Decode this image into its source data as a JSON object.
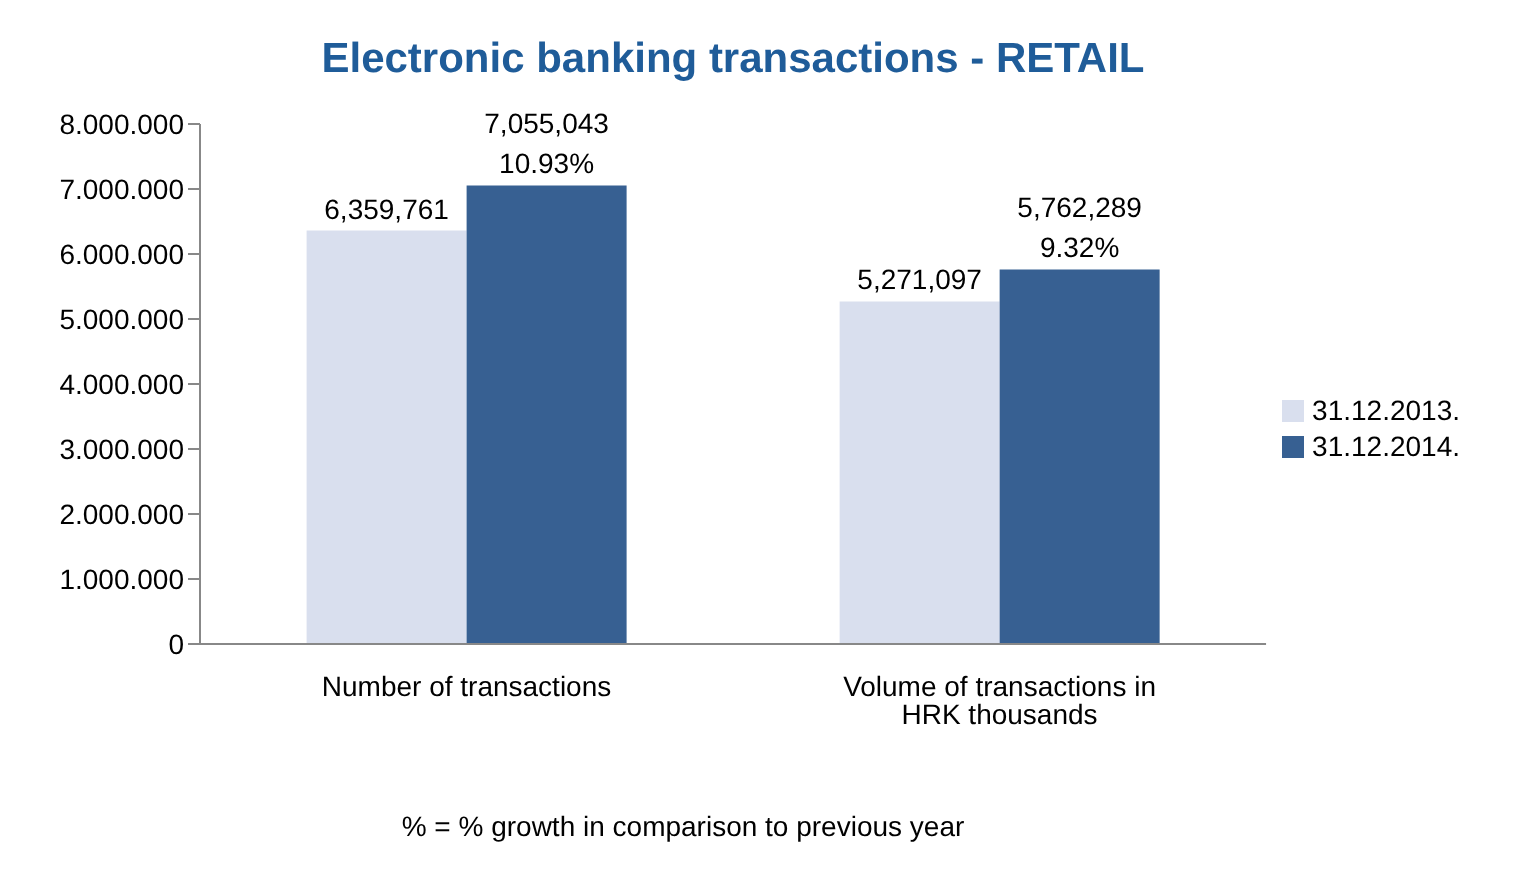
{
  "chart_data": {
    "type": "bar",
    "title": "Electronic banking transactions - RETAIL",
    "categories": [
      "Number of transactions",
      "Volume of transactions in HRK thousands"
    ],
    "series": [
      {
        "name": "31.12.2013.",
        "color": "#d9dfee",
        "values": [
          6359761,
          5271097
        ],
        "value_labels": [
          "6,359,761",
          "5,271,097"
        ]
      },
      {
        "name": "31.12.2014.",
        "color": "#376092",
        "values": [
          7055043,
          5762289
        ],
        "value_labels": [
          "7,055,043\n10.93%",
          "5,762,289\n9.32%"
        ]
      }
    ],
    "ylim": [
      0,
      8000000
    ],
    "yticks": [
      {
        "value": 0,
        "label": "0"
      },
      {
        "value": 1000000,
        "label": "1.000.000"
      },
      {
        "value": 2000000,
        "label": "2.000.000"
      },
      {
        "value": 3000000,
        "label": "3.000.000"
      },
      {
        "value": 4000000,
        "label": "4.000.000"
      },
      {
        "value": 5000000,
        "label": "5.000.000"
      },
      {
        "value": 6000000,
        "label": "6.000.000"
      },
      {
        "value": 7000000,
        "label": "7.000.000"
      },
      {
        "value": 8000000,
        "label": "8.000.000"
      }
    ],
    "grid": false,
    "legend": "right",
    "annotations": [
      "% = % growth in comparison to previous year"
    ]
  }
}
